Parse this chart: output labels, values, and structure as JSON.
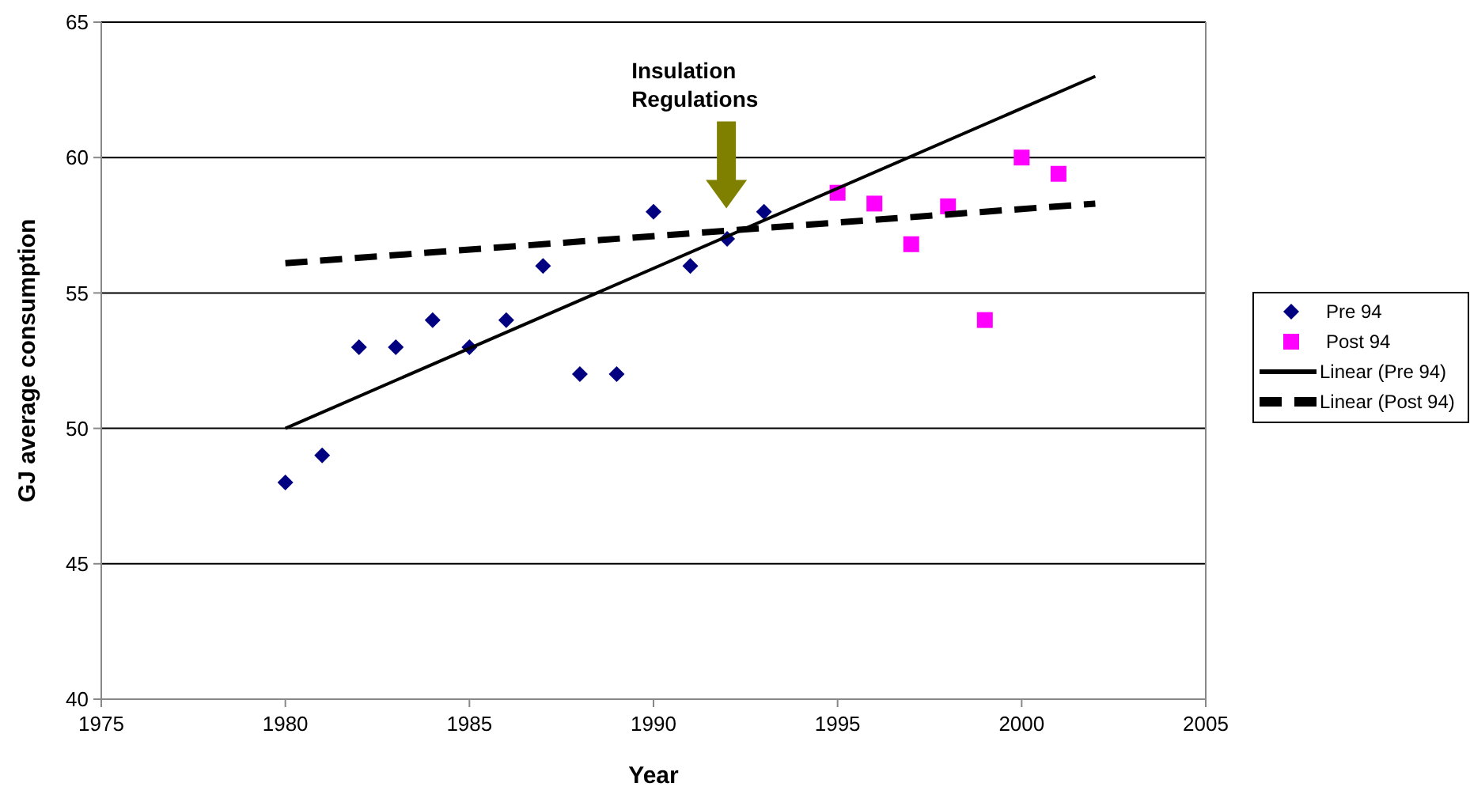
{
  "chart_data": {
    "type": "scatter",
    "xlabel": "Year",
    "ylabel": "GJ average consumption",
    "xlim": [
      1975,
      2005
    ],
    "xticks": [
      1975,
      1980,
      1985,
      1990,
      1995,
      2000,
      2005
    ],
    "ylim": [
      40,
      65
    ],
    "yticks": [
      40,
      45,
      50,
      55,
      60,
      65
    ],
    "grid": "y",
    "legend": "right",
    "annotations": [
      "Insulation Regulations"
    ],
    "series": [
      {
        "name": "Pre 94",
        "marker": "diamond",
        "color": "#000080",
        "x": [
          1980,
          1981,
          1982,
          1983,
          1984,
          1985,
          1986,
          1987,
          1988,
          1989,
          1990,
          1991,
          1992,
          1993
        ],
        "values": [
          48,
          49,
          53,
          53,
          54,
          53,
          54,
          56,
          52,
          52,
          58,
          56,
          57,
          58
        ]
      },
      {
        "name": "Post 94",
        "marker": "square",
        "color": "#ff00ff",
        "x": [
          1995,
          1996,
          1997,
          1998,
          1999,
          2000,
          2001
        ],
        "values": [
          58.7,
          58.3,
          56.8,
          58.2,
          54.0,
          60.0,
          59.4
        ]
      },
      {
        "name": "Linear (Pre 94)",
        "type": "line",
        "marker": "none",
        "line_style": "solid",
        "color": "#000000",
        "x": [
          1980,
          2002
        ],
        "values": [
          50.0,
          63.0
        ]
      },
      {
        "name": "Linear (Post 94)",
        "type": "line",
        "marker": "none",
        "line_style": "dashed",
        "color": "#000000",
        "x": [
          1980,
          2002
        ],
        "values": [
          56.1,
          58.3
        ]
      }
    ]
  }
}
